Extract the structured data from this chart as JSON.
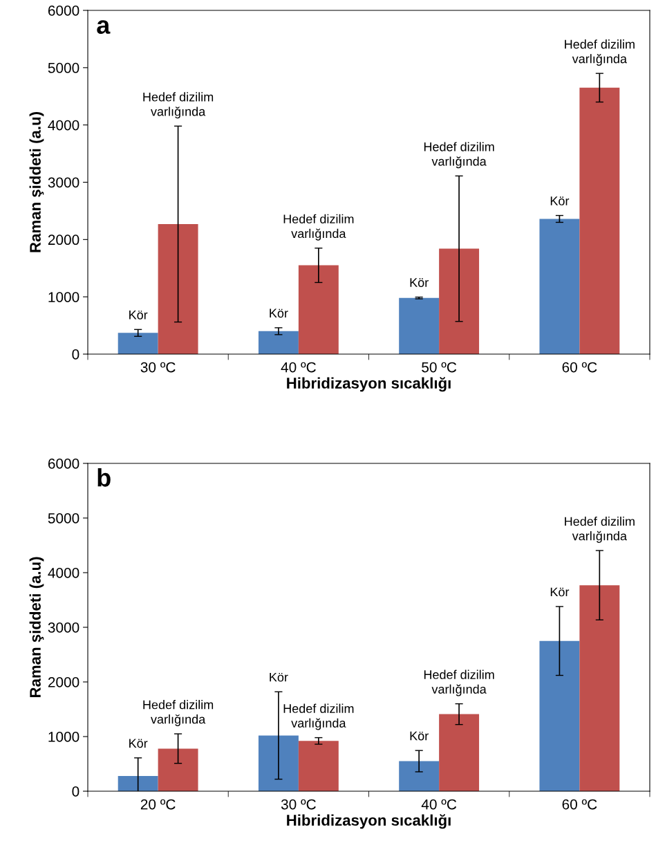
{
  "chart_data": [
    {
      "type": "bar",
      "title": "a",
      "xlabel": "Hibridizasyon sıcaklığı",
      "ylabel": "Raman şiddeti (a.u)",
      "categories": [
        "30 ºC",
        "40 ºC",
        "50 ºC",
        "60 ºC"
      ],
      "series": [
        {
          "color": "#4f81bd",
          "values": [
            370,
            400,
            980,
            2360
          ],
          "errors": [
            60,
            60,
            15,
            60
          ]
        },
        {
          "color": "#c0504d",
          "values": [
            2270,
            1550,
            1840,
            4650
          ],
          "errors": [
            1710,
            300,
            1270,
            250
          ]
        }
      ],
      "ylim": [
        0,
        6000
      ],
      "yticks": [
        0,
        1000,
        2000,
        3000,
        4000,
        5000,
        6000
      ],
      "grid": false,
      "legend": false,
      "annotations": [
        "Kör",
        "Hedef dizilim\nvarlığında",
        "Kör",
        "Hedef dizilim\nvarlığında",
        "Kör",
        "Hedef dizilim\nvarlığında",
        "Kör",
        "Hedef dizilim\nvarlığında"
      ]
    },
    {
      "type": "bar",
      "title": "b",
      "xlabel": "Hibridizasyon sıcaklığı",
      "ylabel": "Raman şiddeti (a.u)",
      "categories": [
        "20 ºC",
        "30 ºC",
        "40 ºC",
        "60 ºC"
      ],
      "series": [
        {
          "color": "#4f81bd",
          "values": [
            280,
            1020,
            550,
            2750
          ],
          "errors": [
            330,
            800,
            195,
            630
          ]
        },
        {
          "color": "#c0504d",
          "values": [
            780,
            920,
            1410,
            3770
          ],
          "errors": [
            270,
            60,
            190,
            635
          ]
        }
      ],
      "ylim": [
        0,
        6000
      ],
      "yticks": [
        0,
        1000,
        2000,
        3000,
        4000,
        5000,
        6000
      ],
      "grid": false,
      "legend": false,
      "annotations": [
        "Kör",
        "Hedef dizilim\nvarlığında",
        "Kör",
        "Hedef dizilim\nvarlığında",
        "Kör",
        "Hedef dizilim\nvarlığında",
        "Kör",
        "Hedef dizilim\nvarlığında"
      ]
    }
  ]
}
